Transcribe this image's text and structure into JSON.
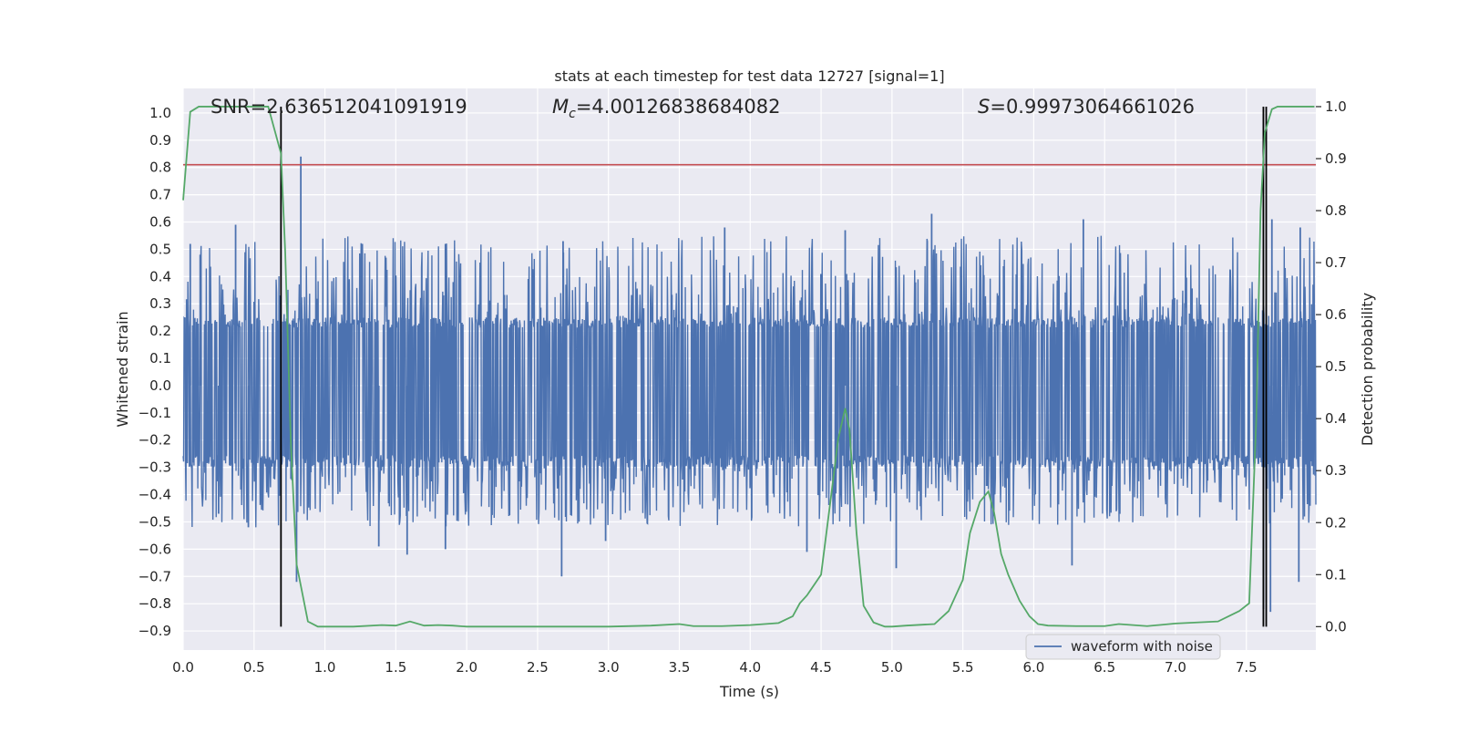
{
  "chart_data": {
    "type": "line",
    "title": "stats at each timestep for test data 12727 [signal=1]",
    "xlabel": "Time (s)",
    "ylabel": "Whitened strain",
    "y2label": "Detection probability",
    "xlim": [
      0.0,
      7.99
    ],
    "ylim": [
      -0.97,
      1.09
    ],
    "y2lim": [
      -0.045,
      1.035
    ],
    "x_ticks": [
      "0.0",
      "0.5",
      "1.0",
      "1.5",
      "2.0",
      "2.5",
      "3.0",
      "3.5",
      "4.0",
      "4.5",
      "5.0",
      "5.5",
      "6.0",
      "6.5",
      "7.0",
      "7.5"
    ],
    "y_ticks": [
      "1.0",
      "0.9",
      "0.8",
      "0.7",
      "0.6",
      "0.5",
      "0.4",
      "0.3",
      "0.2",
      "0.1",
      "0.0",
      "-0.1",
      "-0.2",
      "-0.3",
      "-0.4",
      "-0.5",
      "-0.6",
      "-0.7",
      "-0.8",
      "-0.9"
    ],
    "y2_ticks": [
      "1.0",
      "0.9",
      "0.8",
      "0.7",
      "0.6",
      "0.5",
      "0.4",
      "0.3",
      "0.2",
      "0.1",
      "0.0"
    ],
    "grid": true,
    "annotations": {
      "snr": "SNR=2.636512041091919",
      "mc_symbol": "M",
      "mc_subscript": "c",
      "mc_value": "=4.00126838684082",
      "s_symbol": "S",
      "s_value": "=0.99973064661026"
    },
    "legend": {
      "position": "lower-right",
      "entries": [
        "waveform with noise"
      ]
    },
    "series": [
      {
        "name": "waveform with noise",
        "axis": "left",
        "color": "#4c72b0",
        "core_amplitude": [
          -0.3,
          0.25
        ],
        "peaks": [
          {
            "x": 0.05,
            "y": 0.52
          },
          {
            "x": 0.12,
            "y": 0.48
          },
          {
            "x": 0.37,
            "y": 0.59
          },
          {
            "x": 0.68,
            "y": 0.33
          },
          {
            "x": 0.83,
            "y": 0.84
          },
          {
            "x": 1.85,
            "y": 0.52
          },
          {
            "x": 2.68,
            "y": 0.53
          },
          {
            "x": 3.82,
            "y": 0.58
          },
          {
            "x": 4.67,
            "y": 0.57
          },
          {
            "x": 5.28,
            "y": 0.63
          },
          {
            "x": 6.35,
            "y": 0.61
          },
          {
            "x": 7.68,
            "y": 0.61
          },
          {
            "x": 7.88,
            "y": 0.58
          }
        ],
        "troughs": [
          {
            "x": 0.25,
            "y": -0.47
          },
          {
            "x": 0.46,
            "y": -0.52
          },
          {
            "x": 0.8,
            "y": -0.72
          },
          {
            "x": 1.38,
            "y": -0.59
          },
          {
            "x": 1.58,
            "y": -0.62
          },
          {
            "x": 1.85,
            "y": -0.6
          },
          {
            "x": 2.67,
            "y": -0.7
          },
          {
            "x": 2.98,
            "y": -0.57
          },
          {
            "x": 4.4,
            "y": -0.61
          },
          {
            "x": 5.03,
            "y": -0.67
          },
          {
            "x": 6.27,
            "y": -0.66
          },
          {
            "x": 7.62,
            "y": -0.82
          },
          {
            "x": 7.67,
            "y": -0.83
          },
          {
            "x": 7.87,
            "y": -0.72
          }
        ]
      },
      {
        "name": "",
        "axis": "right",
        "color": "#55a868",
        "x": [
          0.0,
          0.05,
          0.11,
          0.2,
          0.3,
          0.4,
          0.5,
          0.6,
          0.65,
          0.69,
          0.72,
          0.76,
          0.8,
          0.88,
          0.95,
          1.05,
          1.2,
          1.4,
          1.5,
          1.6,
          1.7,
          1.8,
          1.9,
          2.0,
          2.5,
          3.0,
          3.3,
          3.5,
          3.6,
          3.8,
          4.0,
          4.2,
          4.3,
          4.35,
          4.4,
          4.5,
          4.57,
          4.62,
          4.67,
          4.7,
          4.75,
          4.8,
          4.87,
          4.95,
          5.0,
          5.1,
          5.3,
          5.4,
          5.5,
          5.55,
          5.62,
          5.68,
          5.72,
          5.77,
          5.82,
          5.9,
          5.97,
          6.03,
          6.1,
          6.3,
          6.5,
          6.6,
          6.8,
          7.0,
          7.3,
          7.45,
          7.52,
          7.57,
          7.6,
          7.63,
          7.68,
          7.72,
          7.8,
          7.98
        ],
        "y": [
          0.82,
          0.99,
          1.0,
          1.0,
          1.0,
          1.0,
          1.0,
          1.0,
          0.95,
          0.91,
          0.72,
          0.35,
          0.12,
          0.01,
          0.0,
          0.0,
          0.0,
          0.003,
          0.002,
          0.01,
          0.002,
          0.003,
          0.002,
          0.0,
          0.0,
          0.0,
          0.002,
          0.005,
          0.001,
          0.001,
          0.003,
          0.007,
          0.02,
          0.045,
          0.06,
          0.1,
          0.25,
          0.36,
          0.42,
          0.38,
          0.18,
          0.04,
          0.008,
          0.0,
          0.0,
          0.002,
          0.005,
          0.03,
          0.09,
          0.18,
          0.24,
          0.26,
          0.22,
          0.14,
          0.1,
          0.05,
          0.02,
          0.005,
          0.002,
          0.001,
          0.001,
          0.005,
          0.001,
          0.006,
          0.01,
          0.03,
          0.045,
          0.4,
          0.8,
          0.95,
          0.995,
          1.0,
          1.0,
          1.0
        ]
      }
    ],
    "reference_lines": {
      "horizontal_red": {
        "axis": "left",
        "y": 0.81,
        "color": "#c44e52"
      },
      "vertical_black": [
        0.69,
        7.62,
        7.64
      ]
    }
  }
}
